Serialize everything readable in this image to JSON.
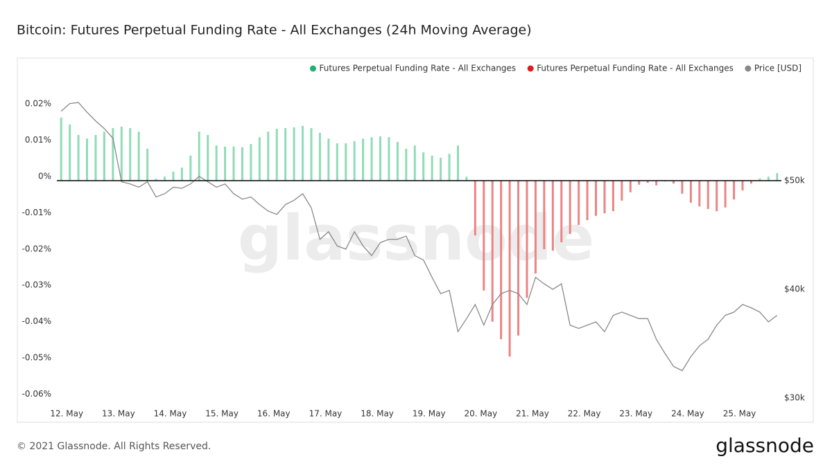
{
  "chart_data": {
    "type": "bar",
    "title": "Bitcoin: Futures Perpetual Funding Rate - All Exchanges (24h Moving Average)",
    "watermark": "glassnode",
    "footer": "© 2021 Glassnode. All Rights Reserved.",
    "logo": "glassnode",
    "categories": [
      "12. May",
      null,
      null,
      null,
      null,
      null,
      "13. May",
      null,
      null,
      null,
      null,
      null,
      "14. May",
      null,
      null,
      null,
      null,
      null,
      "15. May",
      null,
      null,
      null,
      null,
      null,
      "16. May",
      null,
      null,
      null,
      null,
      null,
      "17. May",
      null,
      null,
      null,
      null,
      null,
      "18. May",
      null,
      null,
      null,
      null,
      null,
      "19. May",
      null,
      null,
      null,
      null,
      null,
      "20. May",
      null,
      null,
      null,
      null,
      null,
      "21. May",
      null,
      null,
      null,
      null,
      null,
      "22. May",
      null,
      null,
      null,
      null,
      null,
      "23. May",
      null,
      null,
      null,
      null,
      null,
      "24. May",
      null,
      null,
      null,
      null,
      null,
      "25. May",
      null,
      null,
      null,
      null,
      null
    ],
    "series": [
      {
        "name": "Futures Perpetual Funding Rate - All Exchanges",
        "color": "#1db36e",
        "bar_color": "#8fdcb6",
        "values": [
          0.0174,
          0.0155,
          0.0126,
          0.0116,
          0.0126,
          0.0135,
          0.0145,
          0.0149,
          0.0145,
          0.0135,
          0.0088,
          0.0005,
          0.0011,
          0.0025,
          0.0036,
          0.0069,
          0.0135,
          0.0126,
          0.0097,
          0.0094,
          0.0094,
          0.0092,
          0.0101,
          0.012,
          0.0135,
          0.0143,
          0.0145,
          0.0147,
          0.0151,
          0.0145,
          0.0132,
          0.0116,
          0.0103,
          0.0103,
          0.0109,
          0.0116,
          0.012,
          0.0122,
          0.012,
          0.0107,
          0.0088,
          0.0097,
          0.0078,
          0.0069,
          0.0063,
          0.0074,
          0.0097,
          0.0011,
          null,
          null,
          null,
          null,
          null,
          null,
          null,
          null,
          null,
          null,
          null,
          null,
          null,
          null,
          null,
          null,
          null,
          null,
          null,
          null,
          null,
          null,
          null,
          null,
          null,
          null,
          null,
          null,
          null,
          null,
          null,
          null,
          null,
          0.0006,
          0.0011,
          0.0021
        ]
      },
      {
        "name": "Futures Perpetual Funding Rate - All Exchanges",
        "color": "#e01b1b",
        "bar_color": "#ec8484",
        "values": [
          null,
          null,
          null,
          null,
          null,
          null,
          null,
          null,
          null,
          null,
          null,
          null,
          null,
          null,
          null,
          null,
          null,
          null,
          null,
          null,
          null,
          null,
          null,
          null,
          null,
          null,
          null,
          null,
          null,
          null,
          null,
          null,
          null,
          null,
          null,
          null,
          null,
          null,
          null,
          null,
          null,
          null,
          null,
          null,
          null,
          null,
          null,
          null,
          -0.0151,
          -0.0303,
          -0.0389,
          -0.0437,
          -0.0485,
          -0.0427,
          -0.0323,
          -0.0256,
          -0.0189,
          -0.0193,
          -0.017,
          -0.0147,
          -0.0122,
          -0.0109,
          -0.0097,
          -0.009,
          -0.0084,
          -0.0055,
          -0.0032,
          -0.0011,
          -0.0006,
          -0.0013,
          -0.0002,
          -0.0008,
          -0.0036,
          -0.0061,
          -0.0071,
          -0.0078,
          -0.0084,
          -0.0074,
          -0.0052,
          -0.0027,
          -0.0008,
          null,
          null,
          null
        ]
      },
      {
        "name": "Price [USD]",
        "color": "#888888",
        "type": "line",
        "axis": "y2",
        "values": [
          56400,
          57100,
          57200,
          56300,
          55500,
          54800,
          53900,
          49900,
          49700,
          49400,
          49900,
          48500,
          48800,
          49400,
          49300,
          49700,
          50400,
          49900,
          49400,
          49700,
          48800,
          48300,
          48500,
          47800,
          47200,
          46900,
          47800,
          48200,
          48800,
          47500,
          44600,
          45300,
          44000,
          43700,
          45300,
          44000,
          43100,
          44300,
          44600,
          44600,
          44900,
          43100,
          42700,
          41100,
          39600,
          39900,
          36100,
          37300,
          38600,
          36700,
          38600,
          39600,
          39900,
          39600,
          38600,
          41100,
          40500,
          40000,
          40500,
          36700,
          36400,
          36700,
          37000,
          36100,
          37600,
          37900,
          37600,
          37300,
          37300,
          35400,
          34100,
          32900,
          32500,
          33800,
          34800,
          35400,
          36700,
          37600,
          37900,
          38600,
          38300,
          37900,
          37000,
          37600
        ]
      }
    ],
    "ylim": [
      -0.0605,
      0.025
    ],
    "yticks": [
      {
        "value": 0.02,
        "label": "0.02%"
      },
      {
        "value": 0.01,
        "label": "0.01%"
      },
      {
        "value": 0,
        "label": "0%"
      },
      {
        "value": -0.01,
        "label": "-0.01%"
      },
      {
        "value": -0.02,
        "label": "-0.02%"
      },
      {
        "value": -0.03,
        "label": "-0.03%"
      },
      {
        "value": -0.04,
        "label": "-0.04%"
      },
      {
        "value": -0.05,
        "label": "-0.05%"
      },
      {
        "value": -0.06,
        "label": "-0.06%"
      }
    ],
    "y2lim": [
      29800,
      58350
    ],
    "y2ticks": [
      {
        "value": 50000,
        "label": "$50k"
      },
      {
        "value": 40000,
        "label": "$40k"
      },
      {
        "value": 30000,
        "label": "$30k"
      }
    ],
    "grid": false,
    "legend": "top-right"
  }
}
